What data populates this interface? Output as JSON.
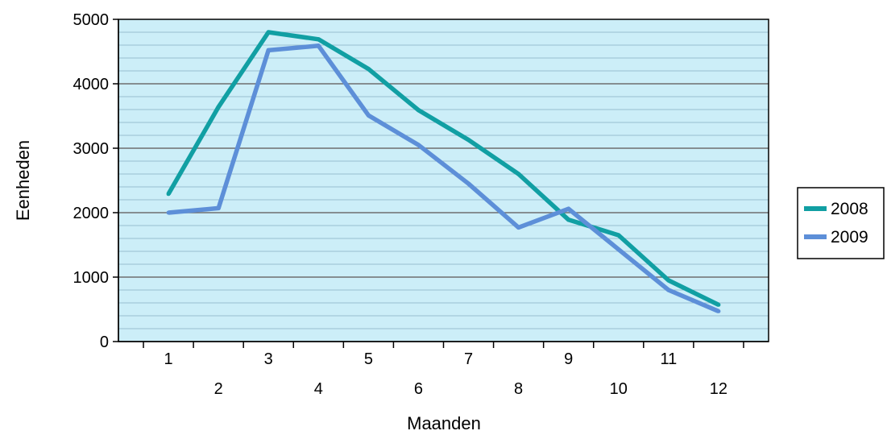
{
  "chart_data": {
    "type": "line",
    "title": "",
    "xlabel": "Maanden",
    "ylabel": "Eenheden",
    "categories": [
      "1",
      "2",
      "3",
      "4",
      "5",
      "6",
      "7",
      "8",
      "9",
      "10",
      "11",
      "12"
    ],
    "series": [
      {
        "name": "2008",
        "color": "#119fa3",
        "values": [
          2290,
          3640,
          4800,
          4690,
          4230,
          3590,
          3130,
          2600,
          1890,
          1650,
          950,
          570
        ]
      },
      {
        "name": "2009",
        "color": "#5d8fd8",
        "values": [
          2000,
          2070,
          4520,
          4590,
          3510,
          3050,
          2450,
          1770,
          2060,
          1430,
          800,
          470
        ]
      }
    ],
    "yticks": [
      "0",
      "1000",
      "2000",
      "3000",
      "4000",
      "5000"
    ],
    "ylim": [
      0,
      5000
    ],
    "grid": true,
    "plot_background": "#cceef8",
    "legend_position": "right"
  }
}
